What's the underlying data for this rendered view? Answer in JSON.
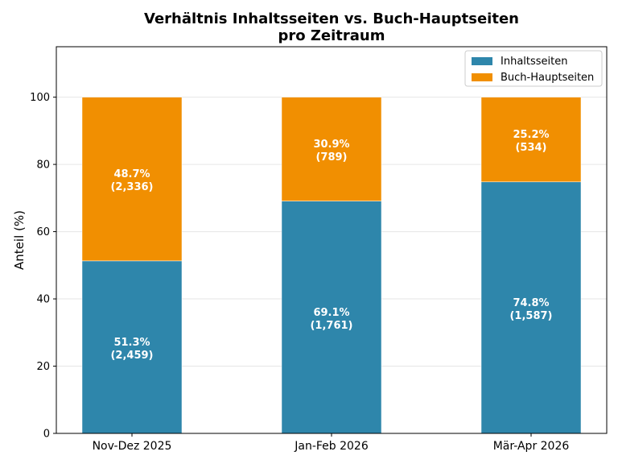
{
  "chart_data": {
    "type": "bar",
    "stacked": true,
    "title_lines": [
      "Verhältnis Inhaltsseiten vs. Buch-Hauptseiten",
      "pro Zeitraum"
    ],
    "xlabel": "",
    "ylabel": "Anteil (%)",
    "ylim": [
      0,
      115
    ],
    "yticks": [
      0,
      20,
      40,
      60,
      80,
      100
    ],
    "grid": "y",
    "legend": "top-right",
    "categories": [
      "Nov-Dez 2025",
      "Jan-Feb 2026",
      "Mär-Apr 2026"
    ],
    "series": [
      {
        "name": "Inhaltsseiten",
        "color": "#2e86ab",
        "values": [
          51.3,
          69.1,
          74.8
        ],
        "labels": [
          [
            "51.3%",
            "(2,459)"
          ],
          [
            "69.1%",
            "(1,761)"
          ],
          [
            "74.8%",
            "(1,587)"
          ]
        ]
      },
      {
        "name": "Buch-Hauptseiten",
        "color": "#f18f01",
        "values": [
          48.7,
          30.9,
          25.2
        ],
        "labels": [
          [
            "48.7%",
            "(2,336)"
          ],
          [
            "30.9%",
            "(789)"
          ],
          [
            "25.2%",
            "(534)"
          ]
        ]
      }
    ]
  }
}
